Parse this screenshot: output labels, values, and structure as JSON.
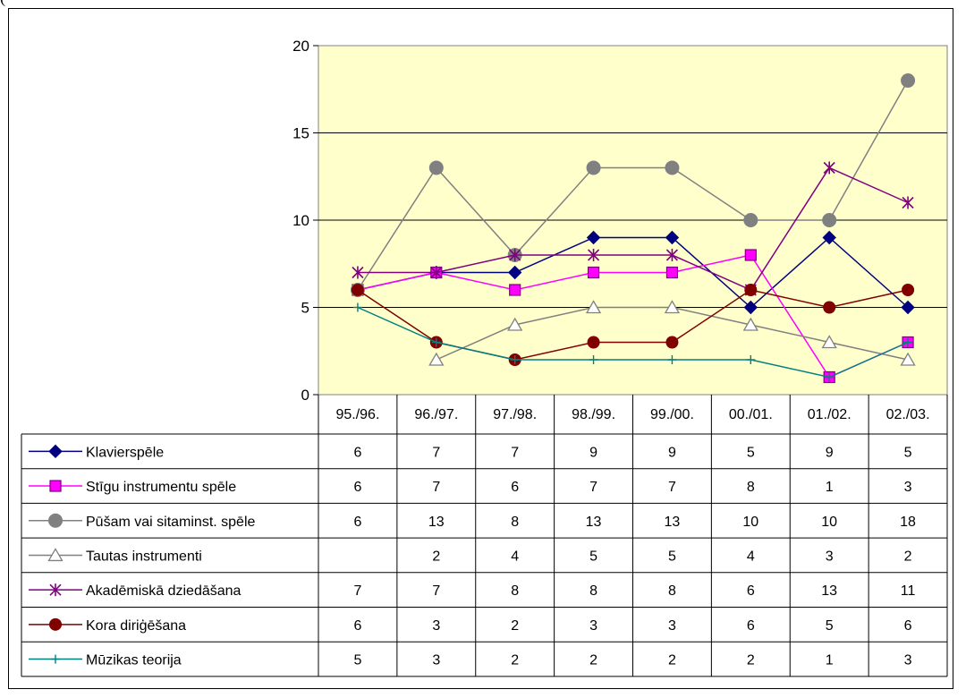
{
  "header_fragment": "(",
  "chart_data": {
    "type": "line",
    "categories": [
      "95./96.",
      "96./97.",
      "97./98.",
      "98./99.",
      "99./00.",
      "00./01.",
      "01./02.",
      "02./03."
    ],
    "ylim": [
      0,
      20
    ],
    "yticks": [
      "0",
      "5",
      "10",
      "15",
      "20"
    ],
    "grid": true,
    "plot_background": "#FFFFCC",
    "legend": "data-table",
    "series": [
      {
        "name": "Klavierspēle",
        "values": [
          6,
          7,
          7,
          9,
          9,
          5,
          9,
          5
        ],
        "color": "#000080",
        "marker": "diamond"
      },
      {
        "name": "Stīgu instrumentu spēle",
        "values": [
          6,
          7,
          6,
          7,
          7,
          8,
          1,
          3
        ],
        "color": "#FF00FF",
        "marker": "square"
      },
      {
        "name": "Pūšam vai sitaminst. spēle",
        "values": [
          6,
          13,
          8,
          13,
          13,
          10,
          10,
          18
        ],
        "color": "#808080",
        "marker": "circle"
      },
      {
        "name": "Tautas instrumenti",
        "values": [
          null,
          2,
          4,
          5,
          5,
          4,
          3,
          2
        ],
        "color": "#808080",
        "marker": "triangle"
      },
      {
        "name": "Akadēmiskā dziedāšana",
        "values": [
          7,
          7,
          8,
          8,
          8,
          6,
          13,
          11
        ],
        "color": "#800080",
        "marker": "star"
      },
      {
        "name": "Kora diriģēšana",
        "values": [
          6,
          3,
          2,
          3,
          3,
          6,
          5,
          6
        ],
        "color": "#800000",
        "marker": "circle"
      },
      {
        "name": "Mūzikas teorija",
        "values": [
          5,
          3,
          2,
          2,
          2,
          2,
          1,
          3
        ],
        "color": "#008080",
        "marker": "plus"
      }
    ]
  }
}
